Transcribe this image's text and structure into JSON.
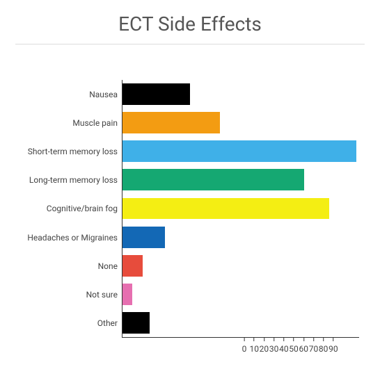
{
  "chart": {
    "type": "bar-horizontal",
    "title": "ECT Side Effects",
    "title_fontsize": 28,
    "title_color": "#555555",
    "background_color": "#ffffff",
    "divider_color": "#dcdcdc",
    "axis_color": "#333333",
    "label_color": "#444444",
    "label_fontsize": 12,
    "xlim": [
      0,
      95
    ],
    "xtick_step": 10,
    "xticks": [
      0,
      10,
      20,
      30,
      40,
      50,
      60,
      70,
      80,
      90
    ],
    "bar_height_ratio": 0.75,
    "categories": [
      {
        "label": "Nausea",
        "value": 27,
        "color": "#000000"
      },
      {
        "label": "Muscle pain",
        "value": 39,
        "color": "#f39c12"
      },
      {
        "label": "Short-term memory loss",
        "value": 94,
        "color": "#3fb0e8"
      },
      {
        "label": "Long-term memory loss",
        "value": 73,
        "color": "#15a872"
      },
      {
        "label": "Cognitive/brain fog",
        "value": 83,
        "color": "#f4ee13"
      },
      {
        "label": "Headaches or Migraines",
        "value": 17,
        "color": "#1368b5"
      },
      {
        "label": "None",
        "value": 8,
        "color": "#e74c3c"
      },
      {
        "label": "Not sure",
        "value": 4,
        "color": "#e66fb0"
      },
      {
        "label": "Other",
        "value": 11,
        "color": "#000000"
      }
    ]
  }
}
